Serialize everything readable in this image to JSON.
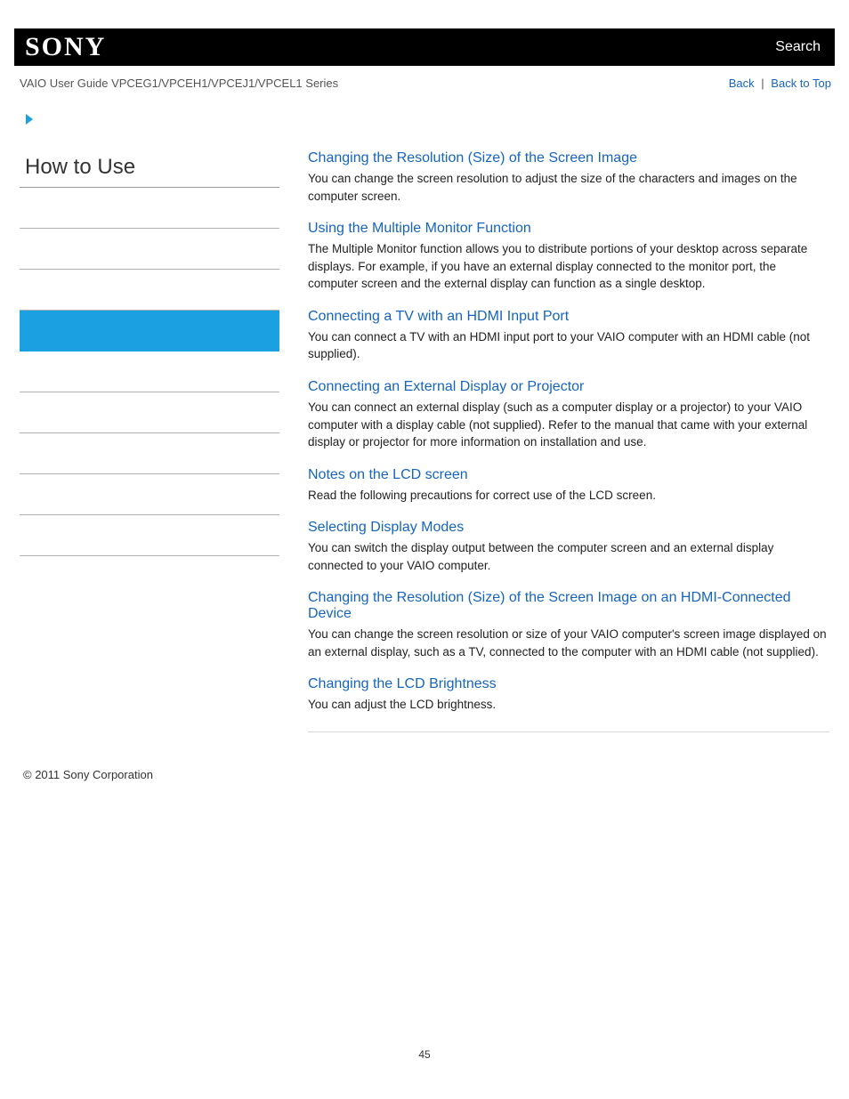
{
  "brand": "SONY",
  "search_label": "Search",
  "guide_title": "VAIO User Guide VPCEG1/VPCEH1/VPCEJ1/VPCEL1 Series",
  "back_label": "Back",
  "backtotop_label": "Back to Top",
  "sidebar": {
    "title": "How to Use",
    "items": [
      {
        "active": false
      },
      {
        "active": false
      },
      {
        "active": false
      },
      {
        "active": true
      },
      {
        "active": false
      },
      {
        "active": false
      },
      {
        "active": false
      },
      {
        "active": false
      },
      {
        "active": false
      }
    ]
  },
  "sections": [
    {
      "title": "Changing the Resolution (Size) of the Screen Image",
      "body": "You can change the screen resolution to adjust the size of the characters and images on the computer screen."
    },
    {
      "title": "Using the Multiple Monitor Function",
      "body": "The Multiple Monitor function allows you to distribute portions of your desktop across separate displays. For example, if you have an external display connected to the monitor port, the computer screen and the external display can function as a single desktop."
    },
    {
      "title": "Connecting a TV with an HDMI Input Port",
      "body": "You can connect a TV with an HDMI input port to your VAIO computer with an HDMI cable (not supplied)."
    },
    {
      "title": "Connecting an External Display or Projector",
      "body": "You can connect an external display (such as a computer display or a projector) to your VAIO computer with a display cable (not supplied). Refer to the manual that came with your external display or projector for more information on installation and use."
    },
    {
      "title": "Notes on the LCD screen",
      "body": "Read the following precautions for correct use of the LCD screen."
    },
    {
      "title": "Selecting Display Modes",
      "body": "You can switch the display output between the computer screen and an external display connected to your VAIO computer."
    },
    {
      "title": "Changing the Resolution (Size) of the Screen Image on an HDMI-Connected Device",
      "body": "You can change the screen resolution or size of your VAIO computer's screen image displayed on an external display, such as a TV, connected to the computer with an HDMI cable (not supplied)."
    },
    {
      "title": "Changing the LCD Brightness",
      "body": "You can adjust the LCD brightness."
    }
  ],
  "copyright": "© 2011 Sony Corporation",
  "page_number": "45",
  "colors": {
    "link": "#1565c0",
    "accent": "#1ba1e2",
    "topbar_bg": "#000000",
    "text": "#333333"
  }
}
